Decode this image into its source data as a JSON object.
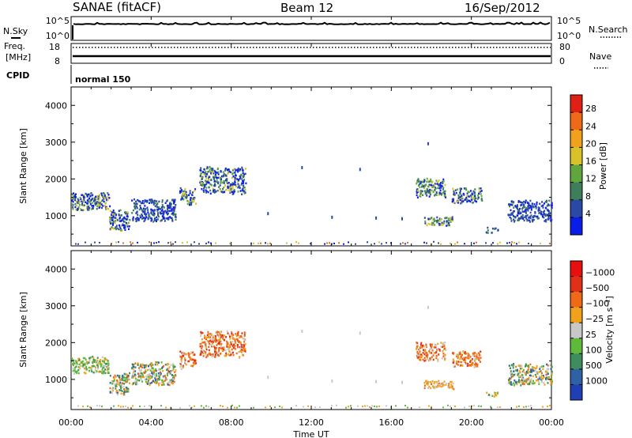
{
  "header": {
    "station": "SANAE (fitACF)",
    "beam": "Beam 12",
    "date": "16/Sep/2012"
  },
  "top_panels": {
    "nsky": {
      "label": "N.Sky",
      "ticks": [
        "10^5",
        "10^0"
      ]
    },
    "nsearch": {
      "label": "N.Search",
      "ticks": [
        "10^5",
        "10^0"
      ]
    },
    "freq": {
      "label_line1": "Freq.",
      "label_line2": "[MHz]",
      "ticks": [
        "18",
        "8"
      ]
    },
    "nave": {
      "label": "Nave",
      "ticks": [
        "80",
        "0"
      ]
    },
    "cpid": {
      "label": "CPID",
      "mode": "normal 150"
    }
  },
  "time_axis": {
    "label": "Time UT",
    "ticks": [
      "00:00",
      "04:00",
      "08:00",
      "12:00",
      "16:00",
      "20:00",
      "00:00"
    ]
  },
  "chart_data": [
    {
      "type": "heatmap",
      "ylabel": "Slant Range [km]",
      "x_ticks": [
        "00:00",
        "04:00",
        "08:00",
        "12:00",
        "16:00",
        "20:00",
        "00:00"
      ],
      "y_ticks": [
        1000,
        2000,
        3000,
        4000
      ],
      "xlim_hours": [
        0,
        24
      ],
      "ylim_km": [
        180,
        4500
      ],
      "colorbar": {
        "label": "Power [dB]",
        "ticks": [
          "4",
          "8",
          "12",
          "16",
          "20",
          "24",
          "28"
        ],
        "colors": [
          "#0a1de8",
          "#2a48a4",
          "#3f7e5a",
          "#5fa63f",
          "#d7c22a",
          "#f0a21d",
          "#ef6a18",
          "#e01f16"
        ]
      },
      "echo_regions": [
        {
          "t0": 0.0,
          "t1": 1.9,
          "r0": 1150,
          "r1": 1650,
          "level": "mixed"
        },
        {
          "t0": 1.9,
          "t1": 2.9,
          "r0": 600,
          "r1": 1200,
          "level": "mixed"
        },
        {
          "t0": 3.0,
          "t1": 5.2,
          "r0": 850,
          "r1": 1500,
          "level": "low"
        },
        {
          "t0": 5.4,
          "t1": 6.2,
          "r0": 1300,
          "r1": 1800,
          "level": "mixed"
        },
        {
          "t0": 6.4,
          "t1": 8.7,
          "r0": 1600,
          "r1": 2350,
          "level": "mixed"
        },
        {
          "t0": 17.2,
          "t1": 18.7,
          "r0": 1500,
          "r1": 2050,
          "level": "high"
        },
        {
          "t0": 17.6,
          "t1": 19.1,
          "r0": 750,
          "r1": 1000,
          "level": "high"
        },
        {
          "t0": 19.0,
          "t1": 20.5,
          "r0": 1350,
          "r1": 1800,
          "level": "mixed"
        },
        {
          "t0": 20.7,
          "t1": 21.3,
          "r0": 550,
          "r1": 700,
          "level": "low"
        },
        {
          "t0": 21.8,
          "t1": 24.0,
          "r0": 850,
          "r1": 1450,
          "level": "low"
        }
      ]
    },
    {
      "type": "heatmap",
      "ylabel": "Slant Range [km]",
      "x_ticks": [
        "00:00",
        "04:00",
        "08:00",
        "12:00",
        "16:00",
        "20:00",
        "00:00"
      ],
      "y_ticks": [
        1000,
        2000,
        3000,
        4000
      ],
      "xlim_hours": [
        0,
        24
      ],
      "ylim_km": [
        180,
        4500
      ],
      "colorbar": {
        "label": "Velocity [m s⁻¹]",
        "ticks": [
          "1000",
          "500",
          "100",
          "25",
          "−25",
          "−100",
          "−500",
          "−1000"
        ],
        "colors": [
          "#1f3fb4",
          "#2f62a4",
          "#3f8d5c",
          "#5fba3c",
          "#c8c8c8",
          "#f0a21d",
          "#ef6a18",
          "#e03018",
          "#e80f0f"
        ]
      },
      "echo_regions": [
        {
          "t0": 0.0,
          "t1": 1.9,
          "r0": 1150,
          "r1": 1650,
          "level": "slow-toward"
        },
        {
          "t0": 1.9,
          "t1": 2.9,
          "r0": 600,
          "r1": 1200,
          "level": "mixed"
        },
        {
          "t0": 3.0,
          "t1": 5.2,
          "r0": 850,
          "r1": 1500,
          "level": "mixed"
        },
        {
          "t0": 5.4,
          "t1": 6.2,
          "r0": 1300,
          "r1": 1800,
          "level": "away"
        },
        {
          "t0": 6.4,
          "t1": 8.7,
          "r0": 1600,
          "r1": 2350,
          "level": "away"
        },
        {
          "t0": 17.2,
          "t1": 18.7,
          "r0": 1500,
          "r1": 2050,
          "level": "away"
        },
        {
          "t0": 17.6,
          "t1": 19.1,
          "r0": 750,
          "r1": 1000,
          "level": "slow-away"
        },
        {
          "t0": 19.0,
          "t1": 20.5,
          "r0": 1350,
          "r1": 1800,
          "level": "away"
        },
        {
          "t0": 20.7,
          "t1": 21.3,
          "r0": 550,
          "r1": 700,
          "level": "slow-toward"
        },
        {
          "t0": 21.8,
          "t1": 24.0,
          "r0": 850,
          "r1": 1450,
          "level": "mixed"
        }
      ]
    }
  ]
}
